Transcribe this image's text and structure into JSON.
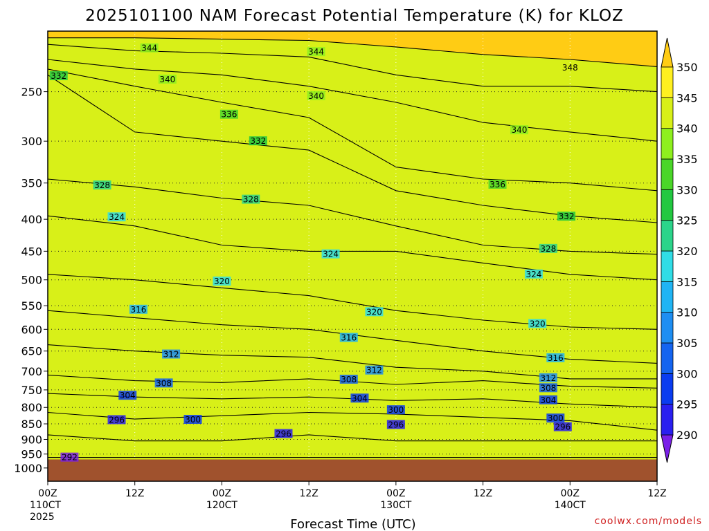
{
  "title": "2025101100 NAM Forecast Potential Temperature (K) for KLOZ",
  "xlabel": "Forecast Time (UTC)",
  "credit": "coolwx.com/models",
  "colors": {
    "surface": "#a0522d",
    "levels": [
      "#7a1fe8",
      "#2a1ff0",
      "#0a3cf0",
      "#1464f0",
      "#1e8ef2",
      "#20b4f4",
      "#30dde6",
      "#2bd48a",
      "#22c840",
      "#4ad628",
      "#8ef01e",
      "#d8f018",
      "#fff020",
      "#ffcc14"
    ]
  },
  "chart_data": {
    "type": "heatmap",
    "variable": "Potential Temperature (K)",
    "station": "KLOZ",
    "run": "2025101100",
    "x_unit": "forecast hour",
    "xlim": [
      0,
      84
    ],
    "x_ticks": [
      {
        "hour": 0,
        "lines": [
          "00Z",
          "110CT",
          "2025"
        ]
      },
      {
        "hour": 12,
        "lines": [
          "12Z"
        ]
      },
      {
        "hour": 24,
        "lines": [
          "00Z",
          "120CT"
        ]
      },
      {
        "hour": 36,
        "lines": [
          "12Z"
        ]
      },
      {
        "hour": 48,
        "lines": [
          "00Z",
          "130CT"
        ]
      },
      {
        "hour": 60,
        "lines": [
          "12Z"
        ]
      },
      {
        "hour": 72,
        "lines": [
          "00Z",
          "140CT"
        ]
      },
      {
        "hour": 84,
        "lines": [
          "12Z"
        ]
      }
    ],
    "y_unit": "hPa",
    "y_scale": "log",
    "ylim": [
      1050,
      200
    ],
    "y_ticks": [
      250,
      300,
      350,
      400,
      450,
      500,
      550,
      600,
      650,
      700,
      750,
      800,
      850,
      900,
      950,
      1000
    ],
    "surface_pressure_hpa": 969,
    "grid": true,
    "colorbar": {
      "min": 290,
      "max": 350,
      "step": 5,
      "ticks": [
        290,
        295,
        300,
        305,
        310,
        315,
        320,
        325,
        330,
        335,
        340,
        345,
        350
      ]
    },
    "contour_interval_k": 2,
    "isentropes": [
      {
        "theta": 292,
        "p": [
          962,
          962,
          962,
          962,
          962,
          962,
          962,
          962
        ]
      },
      {
        "theta": 296,
        "p": [
          885,
          905,
          905,
          885,
          905,
          905,
          905,
          905
        ]
      },
      {
        "theta": 300,
        "p": [
          815,
          835,
          825,
          815,
          820,
          830,
          840,
          870
        ]
      },
      {
        "theta": 304,
        "p": [
          760,
          770,
          775,
          770,
          780,
          775,
          790,
          800
        ]
      },
      {
        "theta": 308,
        "p": [
          710,
          725,
          730,
          720,
          735,
          725,
          740,
          745
        ]
      },
      {
        "theta": 312,
        "p": [
          635,
          650,
          660,
          665,
          690,
          700,
          720,
          720
        ]
      },
      {
        "theta": 316,
        "p": [
          560,
          575,
          590,
          600,
          625,
          650,
          670,
          680
        ]
      },
      {
        "theta": 320,
        "p": [
          490,
          500,
          515,
          530,
          560,
          580,
          595,
          600
        ]
      },
      {
        "theta": 324,
        "p": [
          395,
          410,
          440,
          450,
          450,
          470,
          490,
          500
        ]
      },
      {
        "theta": 328,
        "p": [
          345,
          355,
          370,
          380,
          410,
          440,
          450,
          455
        ]
      },
      {
        "theta": 332,
        "p": [
          235,
          290,
          300,
          310,
          360,
          380,
          395,
          405
        ]
      },
      {
        "theta": 336,
        "p": [
          230,
          245,
          260,
          275,
          330,
          345,
          350,
          360
        ]
      },
      {
        "theta": 340,
        "p": [
          222,
          230,
          235,
          245,
          260,
          280,
          290,
          300
        ]
      },
      {
        "theta": 344,
        "p": [
          210,
          215,
          217,
          220,
          235,
          245,
          245,
          250
        ]
      },
      {
        "theta": 348,
        "p": [
          205,
          205,
          206,
          207,
          212,
          218,
          222,
          228
        ]
      }
    ],
    "contour_labels": [
      {
        "text": "344",
        "hour": 14,
        "p": 213
      },
      {
        "text": "344",
        "hour": 37,
        "p": 216
      },
      {
        "text": "348",
        "hour": 72,
        "p": 229
      },
      {
        "text": "332",
        "hour": 1.5,
        "p": 236
      },
      {
        "text": "340",
        "hour": 16.5,
        "p": 239
      },
      {
        "text": "340",
        "hour": 37,
        "p": 254
      },
      {
        "text": "336",
        "hour": 25,
        "p": 272
      },
      {
        "text": "340",
        "hour": 65,
        "p": 288
      },
      {
        "text": "332",
        "hour": 29,
        "p": 300
      },
      {
        "text": "328",
        "hour": 7.5,
        "p": 353
      },
      {
        "text": "336",
        "hour": 62,
        "p": 352
      },
      {
        "text": "328",
        "hour": 28,
        "p": 372
      },
      {
        "text": "324",
        "hour": 9.5,
        "p": 397
      },
      {
        "text": "332",
        "hour": 71.5,
        "p": 396
      },
      {
        "text": "328",
        "hour": 69,
        "p": 446
      },
      {
        "text": "324",
        "hour": 39,
        "p": 455
      },
      {
        "text": "324",
        "hour": 67,
        "p": 490
      },
      {
        "text": "320",
        "hour": 24,
        "p": 503
      },
      {
        "text": "316",
        "hour": 12.5,
        "p": 558
      },
      {
        "text": "320",
        "hour": 45,
        "p": 563
      },
      {
        "text": "320",
        "hour": 67.5,
        "p": 588
      },
      {
        "text": "316",
        "hour": 41.5,
        "p": 619
      },
      {
        "text": "312",
        "hour": 17,
        "p": 658
      },
      {
        "text": "316",
        "hour": 70,
        "p": 667
      },
      {
        "text": "312",
        "hour": 45,
        "p": 698
      },
      {
        "text": "312",
        "hour": 69,
        "p": 718
      },
      {
        "text": "308",
        "hour": 16,
        "p": 732
      },
      {
        "text": "308",
        "hour": 41.5,
        "p": 722
      },
      {
        "text": "308",
        "hour": 69,
        "p": 745
      },
      {
        "text": "304",
        "hour": 11,
        "p": 766
      },
      {
        "text": "304",
        "hour": 43,
        "p": 774
      },
      {
        "text": "304",
        "hour": 69,
        "p": 779
      },
      {
        "text": "300",
        "hour": 20,
        "p": 837
      },
      {
        "text": "300",
        "hour": 48,
        "p": 808
      },
      {
        "text": "300",
        "hour": 70,
        "p": 833
      },
      {
        "text": "296",
        "hour": 9.5,
        "p": 838
      },
      {
        "text": "296",
        "hour": 48,
        "p": 853
      },
      {
        "text": "296",
        "hour": 32.5,
        "p": 882
      },
      {
        "text": "296",
        "hour": 71,
        "p": 860
      },
      {
        "text": "292",
        "hour": 3,
        "p": 962
      }
    ]
  }
}
